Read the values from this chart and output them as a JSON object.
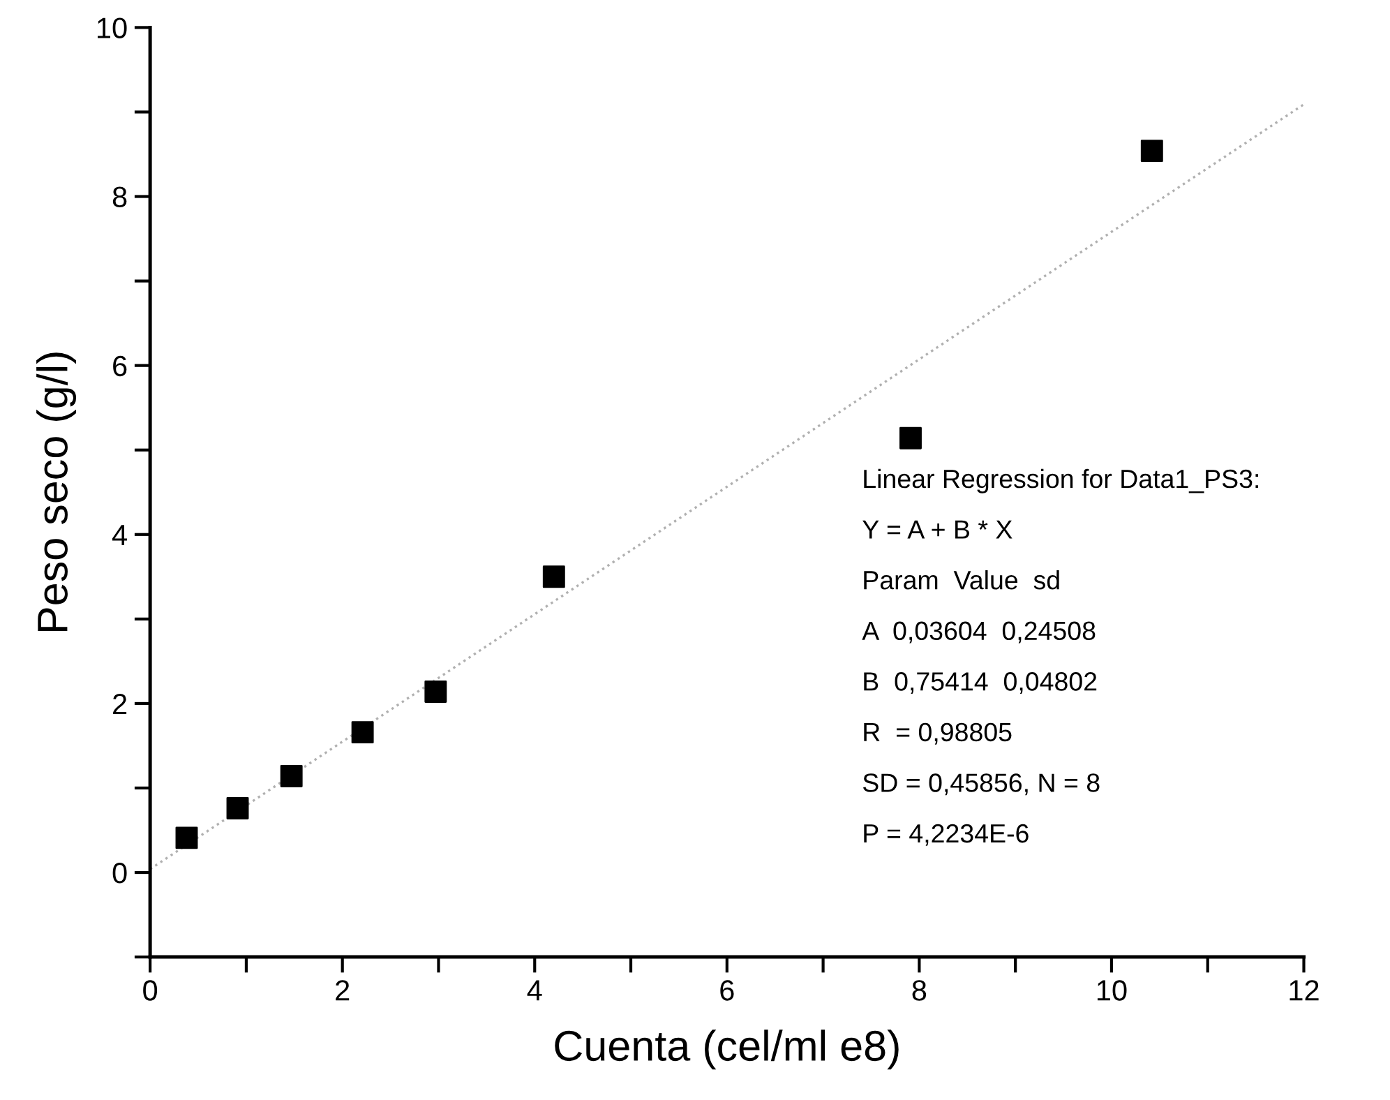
{
  "chart_data": {
    "type": "scatter",
    "xlabel": "Cuenta (cel/ml e8)",
    "ylabel": "Peso seco (g/l)",
    "xlim": [
      0,
      12
    ],
    "ylim": [
      -1,
      10
    ],
    "xticks": [
      0,
      {
        "value": 1,
        "label": null
      },
      2,
      {
        "value": 3,
        "label": null
      },
      4,
      {
        "value": 5,
        "label": null
      },
      6,
      {
        "value": 7,
        "label": null
      },
      8,
      {
        "value": 9,
        "label": null
      },
      10,
      {
        "value": 11,
        "label": null
      },
      12
    ],
    "yticks": [
      {
        "value": -1,
        "label": null
      },
      0,
      {
        "value": 1,
        "label": null
      },
      2,
      {
        "value": 3,
        "label": null
      },
      4,
      {
        "value": 5,
        "label": null
      },
      6,
      {
        "value": 7,
        "label": null
      },
      8,
      {
        "value": 9,
        "label": null
      },
      10
    ],
    "grid": false,
    "legend": false,
    "series": [
      {
        "color": "#000000",
        "marker": "square",
        "x": [
          0.38,
          0.91,
          1.47,
          2.21,
          2.97,
          4.2,
          7.91,
          10.42
        ],
        "values": [
          0.41,
          0.76,
          1.14,
          1.66,
          2.14,
          3.5,
          5.14,
          8.54
        ]
      },
      {
        "type": "line",
        "color": "#b0b0b0",
        "line_style": "dotted",
        "x": [
          0,
          12
        ],
        "values": [
          0.04,
          9.09
        ]
      }
    ],
    "annotations": [
      "Linear Regression for Data1_PS3:",
      "Y = A + B * X",
      "Param  Value  sd",
      "A  0,03604  0,24508",
      "B  0,75414  0,04802",
      "R  = 0,98805",
      "SD = 0,45856, N = 8",
      "P = 4,2234E-6"
    ]
  }
}
